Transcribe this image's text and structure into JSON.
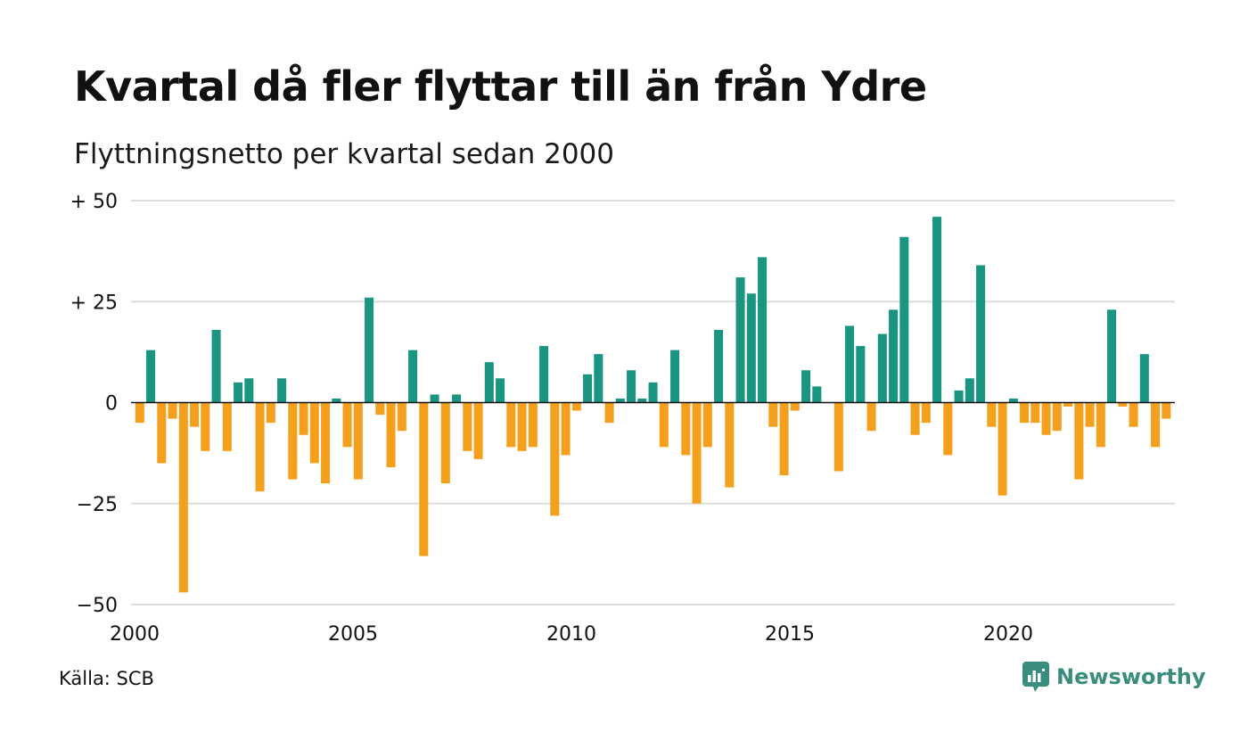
{
  "title": "Kvartal då fler flyttar till än från Ydre",
  "subtitle": "Flyttningsnetto per kvartal sedan 2000",
  "source": "Källa: SCB",
  "brand": {
    "name": "Newsworthy",
    "icon": "newsworthy-logo-icon"
  },
  "colors": {
    "positive": "#1a9582",
    "negative": "#f5a01d",
    "grid": "#dddddd",
    "zero": "#111111",
    "brand": "#3a8c7e"
  },
  "chart_data": {
    "type": "bar",
    "title": "Kvartal då fler flyttar till än från Ydre",
    "subtitle": "Flyttningsnetto per kvartal sedan 2000",
    "xlabel": "",
    "ylabel": "",
    "x_start": 2000,
    "quarters_per_year": 4,
    "xlim": [
      2000,
      2024
    ],
    "ylim": [
      -50,
      50
    ],
    "grid": true,
    "legend": "none",
    "x_ticks": [
      {
        "value": 2000,
        "label": "2000"
      },
      {
        "value": 2005,
        "label": "2005"
      },
      {
        "value": 2010,
        "label": "2010"
      },
      {
        "value": 2015,
        "label": "2015"
      },
      {
        "value": 2020,
        "label": "2020"
      }
    ],
    "y_ticks": [
      {
        "value": 50,
        "label": "+ 50"
      },
      {
        "value": 25,
        "label": "+ 25"
      },
      {
        "value": 0,
        "label": "0"
      },
      {
        "value": -25,
        "label": "−25"
      },
      {
        "value": -50,
        "label": "−50"
      }
    ],
    "values": [
      -5,
      13,
      -15,
      -4,
      -47,
      -6,
      -12,
      18,
      -12,
      5,
      6,
      -22,
      -5,
      6,
      -19,
      -8,
      -15,
      -20,
      1,
      -11,
      -19,
      26,
      -3,
      -16,
      -7,
      13,
      -38,
      2,
      -20,
      2,
      -12,
      -14,
      10,
      6,
      -11,
      -12,
      -11,
      14,
      -28,
      -13,
      -2,
      7,
      12,
      -5,
      1,
      8,
      1,
      5,
      -11,
      13,
      -13,
      -25,
      -11,
      18,
      -21,
      31,
      27,
      36,
      -6,
      -18,
      -2,
      8,
      4,
      0,
      -17,
      19,
      14,
      -7,
      17,
      23,
      41,
      -8,
      -5,
      46,
      -13,
      3,
      6,
      34,
      -6,
      -23,
      1,
      -5,
      -5,
      -8,
      -7,
      -1,
      -19,
      -6,
      -11,
      23,
      -1,
      -6,
      12,
      -11,
      -4
    ]
  }
}
